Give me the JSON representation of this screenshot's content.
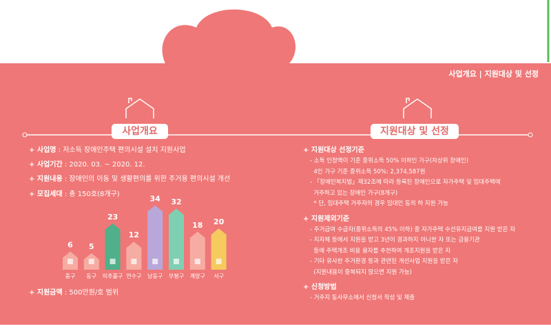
{
  "header": {
    "title": "사업개요 | 지원대상 및 선정"
  },
  "overview": {
    "title": "사업개요",
    "items": [
      {
        "label": "사업명",
        "text": " : 저소득 장애인주택 편의시설 설치 지원사업"
      },
      {
        "label": "사업기간",
        "text": " : 2020. 03. ~ 2020. 12."
      },
      {
        "label": "지원내용",
        "text": " : 장애인의 이동 및 생활편의를 위한 주거용 편의시설 개선"
      },
      {
        "label": "모집세대",
        "text": " : 총 150호(8개구)"
      }
    ],
    "chart": {
      "categories": [
        "중구",
        "동구",
        "미추홀구",
        "연수구",
        "남동구",
        "부평구",
        "계양구",
        "서구"
      ],
      "values": [
        6,
        5,
        23,
        12,
        34,
        32,
        18,
        20
      ],
      "colors": [
        "#f6aca2",
        "#f6aca2",
        "#4fb089",
        "#f6aca2",
        "#b9a7da",
        "#7fd0b2",
        "#f6aca2",
        "#f6ca5e"
      ]
    },
    "funding": {
      "label": "지원금액",
      "text": " : 500만원/호 범위"
    }
  },
  "support": {
    "title": "지원대상 및 선정",
    "sections": [
      {
        "heading": "지원대상 선정기준",
        "lines": [
          "- 소득 인정액이 기준 중위소득 50% 이하인 가구(차상위 장애인)",
          "  4인 가구 기준 중위소득 50%: 2,374,587원",
          "- 「장애인복지법」제32조에 따라 등록된 장애인으로 자가주택 및 임대주택에",
          "  거주하고 있는 장애인 가구(8개구)",
          "  * 단, 임대주택 거주자의 경우 임대인 동의 하 지원 가능"
        ]
      },
      {
        "heading": "지원제외기준",
        "lines": [
          "- 주거급여 수급자(중위소득의 45% 이하) 중 자가주택 수선유지급여를 지원 받은 자",
          "- 지자체 등에서 지원을 받고 3년이 경과하지 아니한 자 또는 금융기관",
          "  등에 주택개조 비용 융자를 추천하여 개조지원을 받은 자",
          "- 기타 유사한 주거환경 등과 관련된 개선사업 지원을 받은 자",
          "  (지원내용이 중복되지 않으면 지원 가능)"
        ]
      },
      {
        "heading": "신청방법",
        "lines": [
          "- 거주지 동사무소에서 신청서 작성 및 제출"
        ]
      }
    ]
  }
}
